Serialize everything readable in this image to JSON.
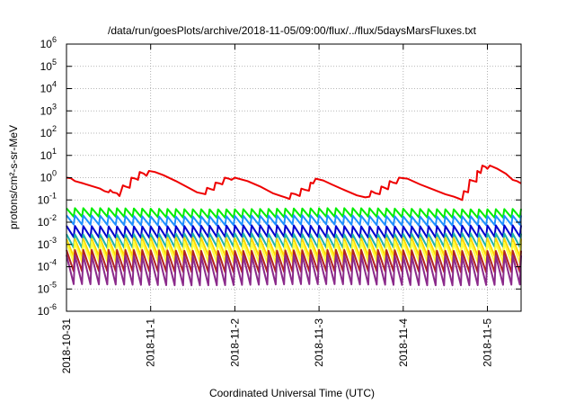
{
  "chart_data": {
    "type": "line",
    "title": "/data/run/goesPlots/archive/2018-11-05/09:00/flux/../flux/5daysMarsFluxes.txt",
    "xlabel": "Coordinated Universal Time (UTC)",
    "ylabel": "protons/cm²-s-sr-MeV",
    "y_scale": "log",
    "ylim_exp": [
      -6,
      6
    ],
    "y_tick_exps": [
      -6,
      -5,
      -4,
      -3,
      -2,
      -1,
      0,
      1,
      2,
      3,
      4,
      5,
      6
    ],
    "x_range_days": [
      0,
      5.4
    ],
    "x_ticks": [
      {
        "day": 0,
        "label": "2018-10-31"
      },
      {
        "day": 1,
        "label": "2018-11-1"
      },
      {
        "day": 2,
        "label": "2018-11-2"
      },
      {
        "day": 3,
        "label": "2018-11-3"
      },
      {
        "day": 4,
        "label": "2018-11-4"
      },
      {
        "day": 5,
        "label": "2018-11-5"
      }
    ],
    "grid": true,
    "series": [
      {
        "color": "#ee0000",
        "stroke": 2,
        "points": [
          [
            0.0,
            1.0
          ],
          [
            0.05,
            0.95
          ],
          [
            0.1,
            0.7
          ],
          [
            0.2,
            0.55
          ],
          [
            0.3,
            0.42
          ],
          [
            0.4,
            0.32
          ],
          [
            0.45,
            0.25
          ],
          [
            0.5,
            0.22
          ],
          [
            0.52,
            0.28
          ],
          [
            0.55,
            0.22
          ],
          [
            0.6,
            0.2
          ],
          [
            0.63,
            0.15
          ],
          [
            0.67,
            0.45
          ],
          [
            0.7,
            0.4
          ],
          [
            0.75,
            0.35
          ],
          [
            0.77,
            1.0
          ],
          [
            0.82,
            0.9
          ],
          [
            0.85,
            0.8
          ],
          [
            0.87,
            1.8
          ],
          [
            0.92,
            1.5
          ],
          [
            0.95,
            1.2
          ],
          [
            0.98,
            2.0
          ],
          [
            1.05,
            1.8
          ],
          [
            1.15,
            1.3
          ],
          [
            1.3,
            0.7
          ],
          [
            1.45,
            0.35
          ],
          [
            1.55,
            0.22
          ],
          [
            1.6,
            0.2
          ],
          [
            1.65,
            0.18
          ],
          [
            1.67,
            0.35
          ],
          [
            1.72,
            0.3
          ],
          [
            1.75,
            0.28
          ],
          [
            1.77,
            0.6
          ],
          [
            1.82,
            0.55
          ],
          [
            1.85,
            0.5
          ],
          [
            1.88,
            1.0
          ],
          [
            1.93,
            0.9
          ],
          [
            1.96,
            0.8
          ],
          [
            2.0,
            1.0
          ],
          [
            2.15,
            0.7
          ],
          [
            2.3,
            0.4
          ],
          [
            2.45,
            0.2
          ],
          [
            2.55,
            0.15
          ],
          [
            2.6,
            0.13
          ],
          [
            2.65,
            0.11
          ],
          [
            2.67,
            0.2
          ],
          [
            2.72,
            0.18
          ],
          [
            2.77,
            0.15
          ],
          [
            2.79,
            0.32
          ],
          [
            2.84,
            0.28
          ],
          [
            2.88,
            0.26
          ],
          [
            2.9,
            0.6
          ],
          [
            2.93,
            0.55
          ],
          [
            2.96,
            0.9
          ],
          [
            3.05,
            0.75
          ],
          [
            3.15,
            0.5
          ],
          [
            3.3,
            0.28
          ],
          [
            3.45,
            0.16
          ],
          [
            3.55,
            0.13
          ],
          [
            3.6,
            0.14
          ],
          [
            3.62,
            0.25
          ],
          [
            3.67,
            0.2
          ],
          [
            3.72,
            0.18
          ],
          [
            3.74,
            0.4
          ],
          [
            3.78,
            0.35
          ],
          [
            3.82,
            0.3
          ],
          [
            3.84,
            0.7
          ],
          [
            3.88,
            0.6
          ],
          [
            3.92,
            0.55
          ],
          [
            3.95,
            1.0
          ],
          [
            4.05,
            0.9
          ],
          [
            4.2,
            0.5
          ],
          [
            4.35,
            0.3
          ],
          [
            4.5,
            0.18
          ],
          [
            4.6,
            0.14
          ],
          [
            4.65,
            0.12
          ],
          [
            4.7,
            0.1
          ],
          [
            4.72,
            0.25
          ],
          [
            4.77,
            0.22
          ],
          [
            4.79,
            0.8
          ],
          [
            4.84,
            0.7
          ],
          [
            4.87,
            0.65
          ],
          [
            4.88,
            2.0
          ],
          [
            4.92,
            1.6
          ],
          [
            4.94,
            3.5
          ],
          [
            4.98,
            3.0
          ],
          [
            5.0,
            2.5
          ],
          [
            5.03,
            3.5
          ],
          [
            5.12,
            2.5
          ],
          [
            5.22,
            1.5
          ],
          [
            5.3,
            0.8
          ],
          [
            5.35,
            0.7
          ],
          [
            5.4,
            0.55
          ]
        ]
      },
      {
        "color": "#00ee00",
        "stroke": 2,
        "base": 0.026,
        "spike": 1.55,
        "period": 0.1
      },
      {
        "color": "#1e90ff",
        "stroke": 2,
        "base": 0.012,
        "spike": 1.6,
        "period": 0.1
      },
      {
        "color": "#0000cd",
        "stroke": 2,
        "base": 0.0038,
        "spike": 1.8,
        "period": 0.1
      },
      {
        "color": "#20b2aa",
        "stroke": 2,
        "base": 0.0015,
        "spike": 2.0,
        "period": 0.1
      },
      {
        "color": "#ffd700",
        "stroke": 2,
        "base": 0.00075,
        "spike": 2.5,
        "period": 0.1
      },
      {
        "color": "#ffff40",
        "stroke": 2,
        "base": 0.00045,
        "spike": 2.8,
        "period": 0.1
      },
      {
        "color": "#b22222",
        "stroke": 2,
        "base": 0.00018,
        "spike": 3.0,
        "period": 0.1
      },
      {
        "color": "#8b2a8b",
        "stroke": 2,
        "base": 7e-05,
        "spike": 4.5,
        "period": 0.1
      }
    ]
  }
}
